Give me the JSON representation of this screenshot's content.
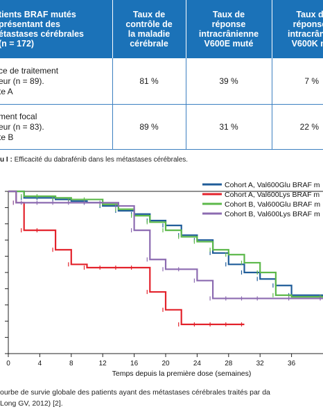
{
  "table": {
    "headers": [
      "tients BRAF mutés\n présentant des\nétastases cérébrales\n(n = 172)",
      "Taux de\ncontrôle de\nla maladie\ncérébrale",
      "Taux de\nréponse\nintracrânienne\nV600E muté",
      "Taux d\nréponse\nintracrânie\nV600K m"
    ],
    "rows": [
      {
        "label": "ce de traitement\neur (n = 89).\nte A",
        "values": [
          "81 %",
          "39 %",
          "7 %"
        ]
      },
      {
        "label": "ment focal\neur (n = 83).\nte B",
        "values": [
          "89 %",
          "31 %",
          "22 %"
        ]
      }
    ],
    "caption_prefix": "u I :",
    "caption_text": "Efficacité du dabrafénib dans les métastases cérébrales."
  },
  "chart_data": {
    "type": "line",
    "xlabel": "Temps depuis la première dose (semaines)",
    "x_ticks": [
      0,
      4,
      8,
      12,
      16,
      20,
      24,
      28,
      32,
      36
    ],
    "xlim": [
      0,
      40
    ],
    "ylim": [
      0,
      1
    ],
    "legend_position": "top-right",
    "series": [
      {
        "name": "Cohort A, Val600Glu BRAF m",
        "color": "#1f5c99",
        "x": [
          0,
          2,
          4,
          6,
          8,
          10,
          12,
          14,
          16,
          18,
          20,
          22,
          24,
          26,
          28,
          30,
          32,
          34,
          36,
          40
        ],
        "y": [
          1.0,
          0.96,
          0.96,
          0.95,
          0.94,
          0.93,
          0.91,
          0.88,
          0.86,
          0.82,
          0.79,
          0.73,
          0.7,
          0.62,
          0.55,
          0.5,
          0.46,
          0.42,
          0.36,
          0.35
        ]
      },
      {
        "name": "Cohort A, Val600Lys BRAF m",
        "color": "#e3232c",
        "x": [
          0,
          1,
          2,
          4,
          6,
          8,
          10,
          12,
          14,
          16,
          18,
          20,
          22,
          24,
          26,
          28,
          30
        ],
        "y": [
          1.0,
          0.93,
          0.76,
          0.76,
          0.64,
          0.55,
          0.53,
          0.53,
          0.53,
          0.53,
          0.38,
          0.27,
          0.18,
          0.18,
          0.18,
          0.18,
          0.18
        ]
      },
      {
        "name": "Cohort B, Val600Glu BRAF m",
        "color": "#5cb84a",
        "x": [
          0,
          2,
          4,
          6,
          8,
          10,
          12,
          14,
          16,
          18,
          20,
          22,
          24,
          26,
          28,
          30,
          32,
          34,
          36,
          40
        ],
        "y": [
          1.0,
          0.97,
          0.97,
          0.96,
          0.95,
          0.95,
          0.92,
          0.89,
          0.85,
          0.81,
          0.76,
          0.72,
          0.69,
          0.64,
          0.61,
          0.56,
          0.5,
          0.36,
          0.35,
          0.35
        ]
      },
      {
        "name": "Cohort B, Val600Lys BRAF m",
        "color": "#8c6bb1",
        "x": [
          0,
          1,
          2,
          4,
          6,
          8,
          10,
          12,
          14,
          16,
          18,
          20,
          22,
          24,
          26,
          28,
          30,
          32,
          36,
          40
        ],
        "y": [
          1.0,
          0.93,
          0.93,
          0.93,
          0.93,
          0.93,
          0.93,
          0.93,
          0.91,
          0.76,
          0.58,
          0.52,
          0.52,
          0.45,
          0.34,
          0.34,
          0.34,
          0.34,
          0.34,
          0.34
        ]
      }
    ]
  },
  "figure_caption": {
    "line1": "ourbe de survie globale des patients ayant des métastases cérébrales traités par da",
    "line2": "Long GV, 2012) [2]."
  }
}
